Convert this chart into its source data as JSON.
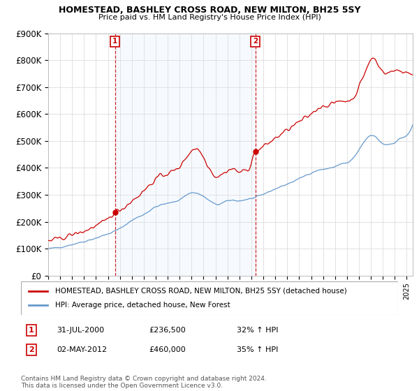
{
  "title": "HOMESTEAD, BASHLEY CROSS ROAD, NEW MILTON, BH25 5SY",
  "subtitle": "Price paid vs. HM Land Registry's House Price Index (HPI)",
  "ylabel_ticks": [
    "£0",
    "£100K",
    "£200K",
    "£300K",
    "£400K",
    "£500K",
    "£600K",
    "£700K",
    "£800K",
    "£900K"
  ],
  "ylim": [
    0,
    900000
  ],
  "xlim_start": 1995.0,
  "xlim_end": 2025.5,
  "legend_line1": "HOMESTEAD, BASHLEY CROSS ROAD, NEW MILTON, BH25 5SY (detached house)",
  "legend_line2": "HPI: Average price, detached house, New Forest",
  "annotation1_label": "1",
  "annotation1_date": "31-JUL-2000",
  "annotation1_price": "£236,500",
  "annotation1_hpi": "32% ↑ HPI",
  "annotation2_label": "2",
  "annotation2_date": "02-MAY-2012",
  "annotation2_price": "£460,000",
  "annotation2_hpi": "35% ↑ HPI",
  "footer": "Contains HM Land Registry data © Crown copyright and database right 2024.\nThis data is licensed under the Open Government Licence v3.0.",
  "hpi_color": "#6699cc",
  "price_color": "#cc0000",
  "annotation_color": "#cc0000",
  "background_color": "#ffffff",
  "grid_color": "#dddddd",
  "shade_color": "#ddeeff",
  "sale1_x": 2000.58,
  "sale1_y": 236500,
  "sale2_x": 2012.33,
  "sale2_y": 460000
}
